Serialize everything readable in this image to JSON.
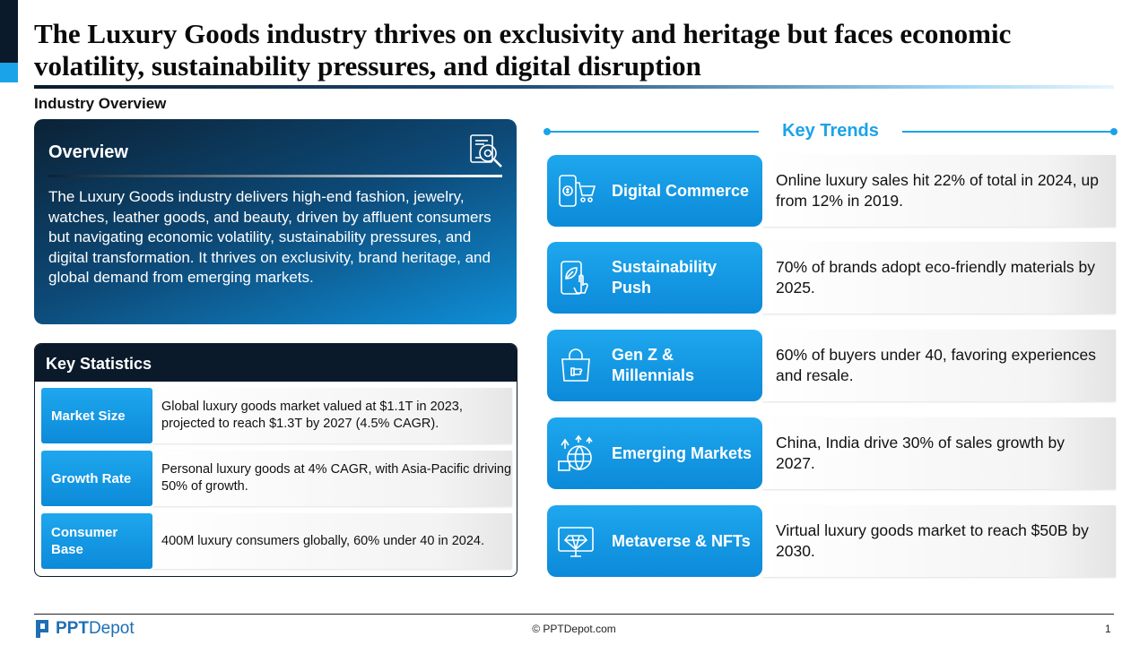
{
  "header": {
    "title": "The Luxury Goods industry thrives on exclusivity and heritage but faces economic volatility, sustainability pressures, and digital disruption",
    "subtitle": "Industry Overview"
  },
  "overview": {
    "heading": "Overview",
    "icon": "document-magnifier-icon",
    "text": "The Luxury Goods industry delivers high-end fashion, jewelry, watches, leather goods, and beauty, driven by affluent consumers but navigating economic volatility, sustainability pressures, and digital transformation. It thrives on exclusivity, brand heritage, and global demand from emerging markets."
  },
  "key_statistics": {
    "heading": "Key Statistics",
    "rows": [
      {
        "label": "Market Size",
        "value": "Global luxury goods market valued at $1.1T in 2023, projected to reach $1.3T by 2027 (4.5% CAGR)."
      },
      {
        "label": "Growth Rate",
        "value": "Personal luxury goods at 4% CAGR, with Asia-Pacific driving 50% of growth."
      },
      {
        "label": "Consumer Base",
        "value": "400M luxury consumers globally, 60% under 40 in 2024."
      }
    ]
  },
  "key_trends": {
    "heading": "Key Trends",
    "items": [
      {
        "label": "Digital Commerce",
        "icon": "phone-cart-icon",
        "value": "Online luxury sales hit 22% of total in 2024, up from 12% in 2019."
      },
      {
        "label": "Sustainability Push",
        "icon": "phone-leaf-icon",
        "value": "70% of brands adopt eco-friendly materials by 2025."
      },
      {
        "label": "Gen Z & Millennials",
        "icon": "shopping-bag-icon",
        "value": "60% of buyers under 40, favoring experiences and resale."
      },
      {
        "label": "Emerging Markets",
        "icon": "globe-growth-icon",
        "value": "China, India drive 30% of sales growth by 2027."
      },
      {
        "label": "Metaverse & NFTs",
        "icon": "monitor-diamond-icon",
        "value": "Virtual luxury goods market to reach $50B by 2030."
      }
    ]
  },
  "footer": {
    "brand_strong": "PPT",
    "brand_rest": "Depot",
    "copyright": "© PPTDepot.com",
    "page_number": "1"
  },
  "colors": {
    "navy": "#0a1a2b",
    "accent_blue": "#1aa3e8"
  }
}
